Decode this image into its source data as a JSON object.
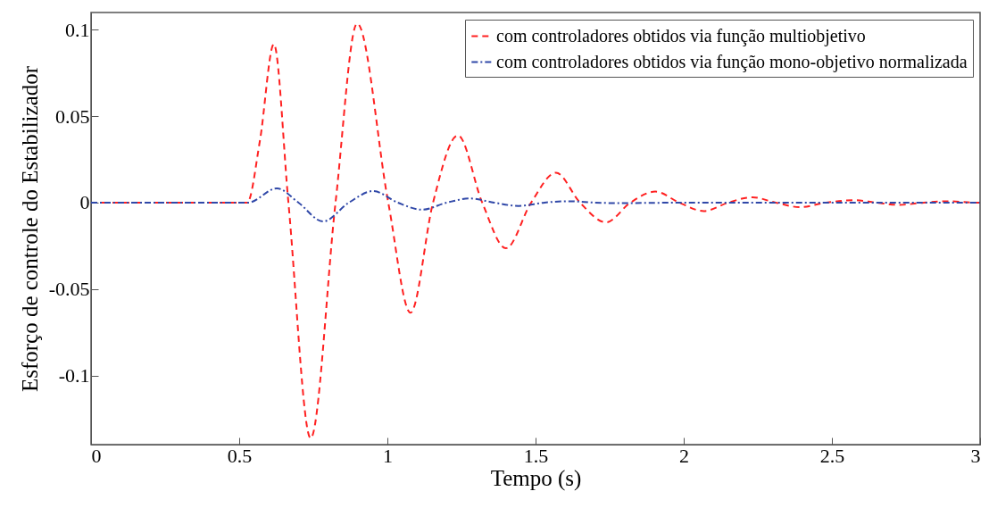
{
  "chart_data": {
    "type": "line",
    "xlabel": "Tempo (s)",
    "ylabel": "Esforço de controle do Estabilizador",
    "xlim": [
      0,
      3
    ],
    "xticks": [
      0,
      0.5,
      1,
      1.5,
      2,
      2.5,
      3
    ],
    "ylim": [
      -0.14,
      0.11
    ],
    "yticks": [
      -0.1,
      -0.05,
      0,
      0.05,
      0.1
    ],
    "grid": false,
    "legend": "top right",
    "marker": "none",
    "series": [
      {
        "name": "com controladores obtidos via função multiobjetivo",
        "color": "#ff2020",
        "line_style": "dashed",
        "x": [
          0,
          0.5,
          0.527,
          0.57,
          0.617,
          0.666,
          0.741,
          0.825,
          0.898,
          1.003,
          1.078,
          1.154,
          1.238,
          1.32,
          1.4,
          1.485,
          1.569,
          1.65,
          1.738,
          1.82,
          1.904,
          1.985,
          2.068,
          2.15,
          2.232,
          2.31,
          2.392,
          2.48,
          2.575,
          2.65,
          2.726,
          2.81,
          2.898,
          2.98,
          3
        ],
        "values": [
          0,
          0,
          0,
          0.036,
          0.0917,
          0,
          -0.1363,
          0,
          0.1036,
          0,
          -0.0637,
          0,
          0.0389,
          0,
          -0.0264,
          0,
          0.0173,
          0,
          -0.0114,
          0,
          0.0064,
          0,
          -0.0049,
          0,
          0.0031,
          0,
          -0.0026,
          0,
          0.0014,
          0,
          -0.0013,
          0,
          0.0008,
          0,
          0
        ]
      },
      {
        "name": "com controladores obtidos via função mono-objetivo normalizada",
        "color": "#3048a8",
        "line_style": "dashdot",
        "x": [
          0,
          0.5,
          0.53,
          0.627,
          0.7,
          0.783,
          0.87,
          0.952,
          1.035,
          1.118,
          1.2,
          1.28,
          1.36,
          1.443,
          1.53,
          1.613,
          1.7,
          1.78,
          2.0,
          3
        ],
        "values": [
          0,
          0,
          0,
          0.0083,
          0,
          -0.0109,
          0,
          0.0067,
          0,
          -0.0041,
          0,
          0.0024,
          0,
          -0.0019,
          0,
          0.0008,
          0,
          -0.0003,
          0,
          0
        ]
      }
    ]
  }
}
